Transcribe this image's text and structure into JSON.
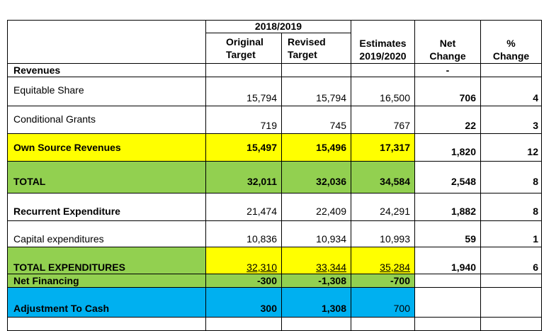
{
  "header": {
    "year_group": "2018/2019",
    "col_original": [
      "Original",
      "Target"
    ],
    "col_revised": [
      "Revised",
      "Target"
    ],
    "col_estimates": [
      "Estimates",
      "2019/2020"
    ],
    "col_net": [
      "Net",
      "Change"
    ],
    "col_pct": [
      "%",
      "Change"
    ]
  },
  "rows": {
    "revenues": {
      "label": "Revenues",
      "net": "-"
    },
    "equitable": {
      "label": "Equitable  Share",
      "original": "15,794",
      "revised": "15,794",
      "estimates": "16,500",
      "net": "706",
      "pct": "4"
    },
    "conditional": {
      "label": "Conditional  Grants",
      "original": "719",
      "revised": "745",
      "estimates": "767",
      "net": "22",
      "pct": "3"
    },
    "own_source": {
      "label": "Own Source Revenues",
      "original": "15,497",
      "revised": "15,496",
      "estimates": "17,317",
      "net": "1,820",
      "pct": "12"
    },
    "total": {
      "label": "TOTAL",
      "original": "32,011",
      "revised": "32,036",
      "estimates": "34,584",
      "net": "2,548",
      "pct": "8"
    },
    "recurrent": {
      "label": "Recurrent  Expenditure",
      "original": "21,474",
      "revised": "22,409",
      "estimates": "24,291",
      "net": "1,882",
      "pct": "8"
    },
    "capital": {
      "label": "Capital expenditures",
      "original": "10,836",
      "revised": "10,934",
      "estimates": "10,993",
      "net": "59",
      "pct": "1"
    },
    "total_exp": {
      "label": "TOTAL  EXPENDITURES",
      "original": "32,310",
      "revised": "33,344",
      "estimates": "35,284",
      "net": "1,940",
      "pct": "6"
    },
    "net_fin": {
      "label": "Net  Financing",
      "original": "-300",
      "revised": "-1,308",
      "estimates": "-700"
    },
    "adjust": {
      "label": "Adjustment  To  Cash",
      "original": "300",
      "revised": "1,308",
      "estimates": "700"
    }
  },
  "colors": {
    "yellow": "#ffff00",
    "green": "#92d050",
    "blue": "#00b0f0"
  }
}
